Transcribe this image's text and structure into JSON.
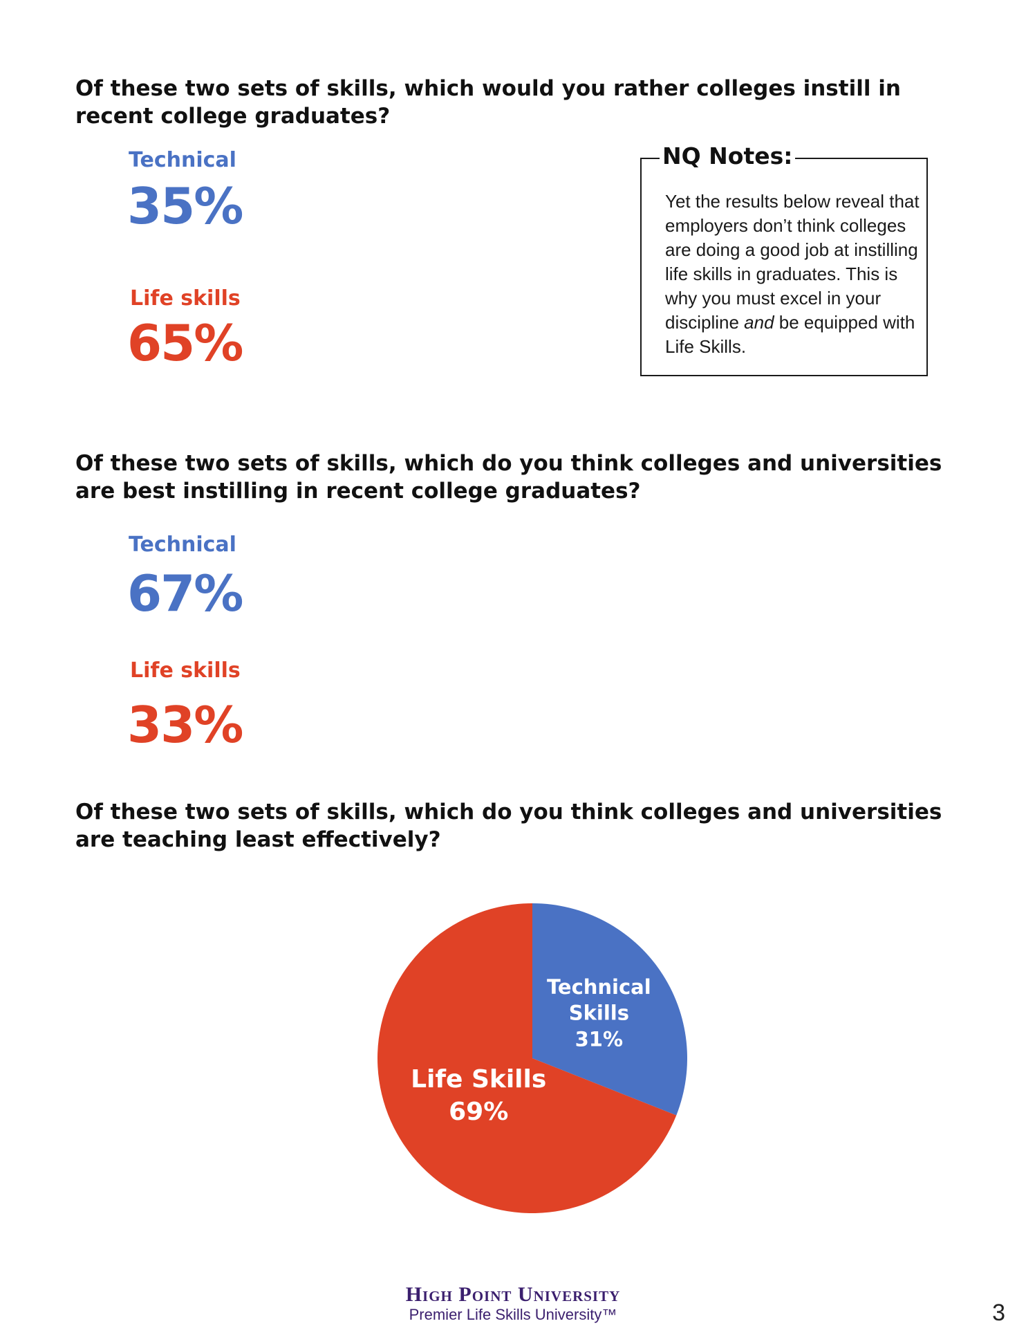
{
  "section1": {
    "question": "Of these two sets of skills, which would you rather colleges instill in recent college graduates?",
    "technical_label": "Technical",
    "technical_value": "35%",
    "life_label": "Life skills",
    "life_value": "65%"
  },
  "notes": {
    "title": "NQ Notes:",
    "text_before": "Yet the results below reveal that employers don’t think colleges are doing a good job at instilling life skills in graduates. This is why you must excel in your discipline ",
    "text_emphasis": "and",
    "text_after": " be equipped with Life Skills."
  },
  "section2": {
    "question": "Of these two sets of skills, which do you think colleges and universities are best instilling in recent college graduates?",
    "technical_label": "Technical",
    "technical_value": "67%",
    "life_label": "Life skills",
    "life_value": "33%"
  },
  "section3": {
    "question": "Of these two sets of skills, which do you think colleges and universities are teaching least effectively?"
  },
  "chart_data": {
    "type": "pie",
    "title": "",
    "slices": [
      {
        "name": "Technical Skills",
        "label_lines": [
          "Technical",
          "Skills"
        ],
        "value": 31,
        "display": "31%",
        "color": "#4a72c4"
      },
      {
        "name": "Life Skills",
        "label_lines": [
          "Life Skills"
        ],
        "value": 69,
        "display": "69%",
        "color": "#e04226"
      }
    ]
  },
  "footer": {
    "brand": "High Point University",
    "tagline": "Premier Life Skills University™",
    "page_number": "3"
  },
  "colors": {
    "technical": "#4a72c4",
    "life": "#e04226"
  }
}
